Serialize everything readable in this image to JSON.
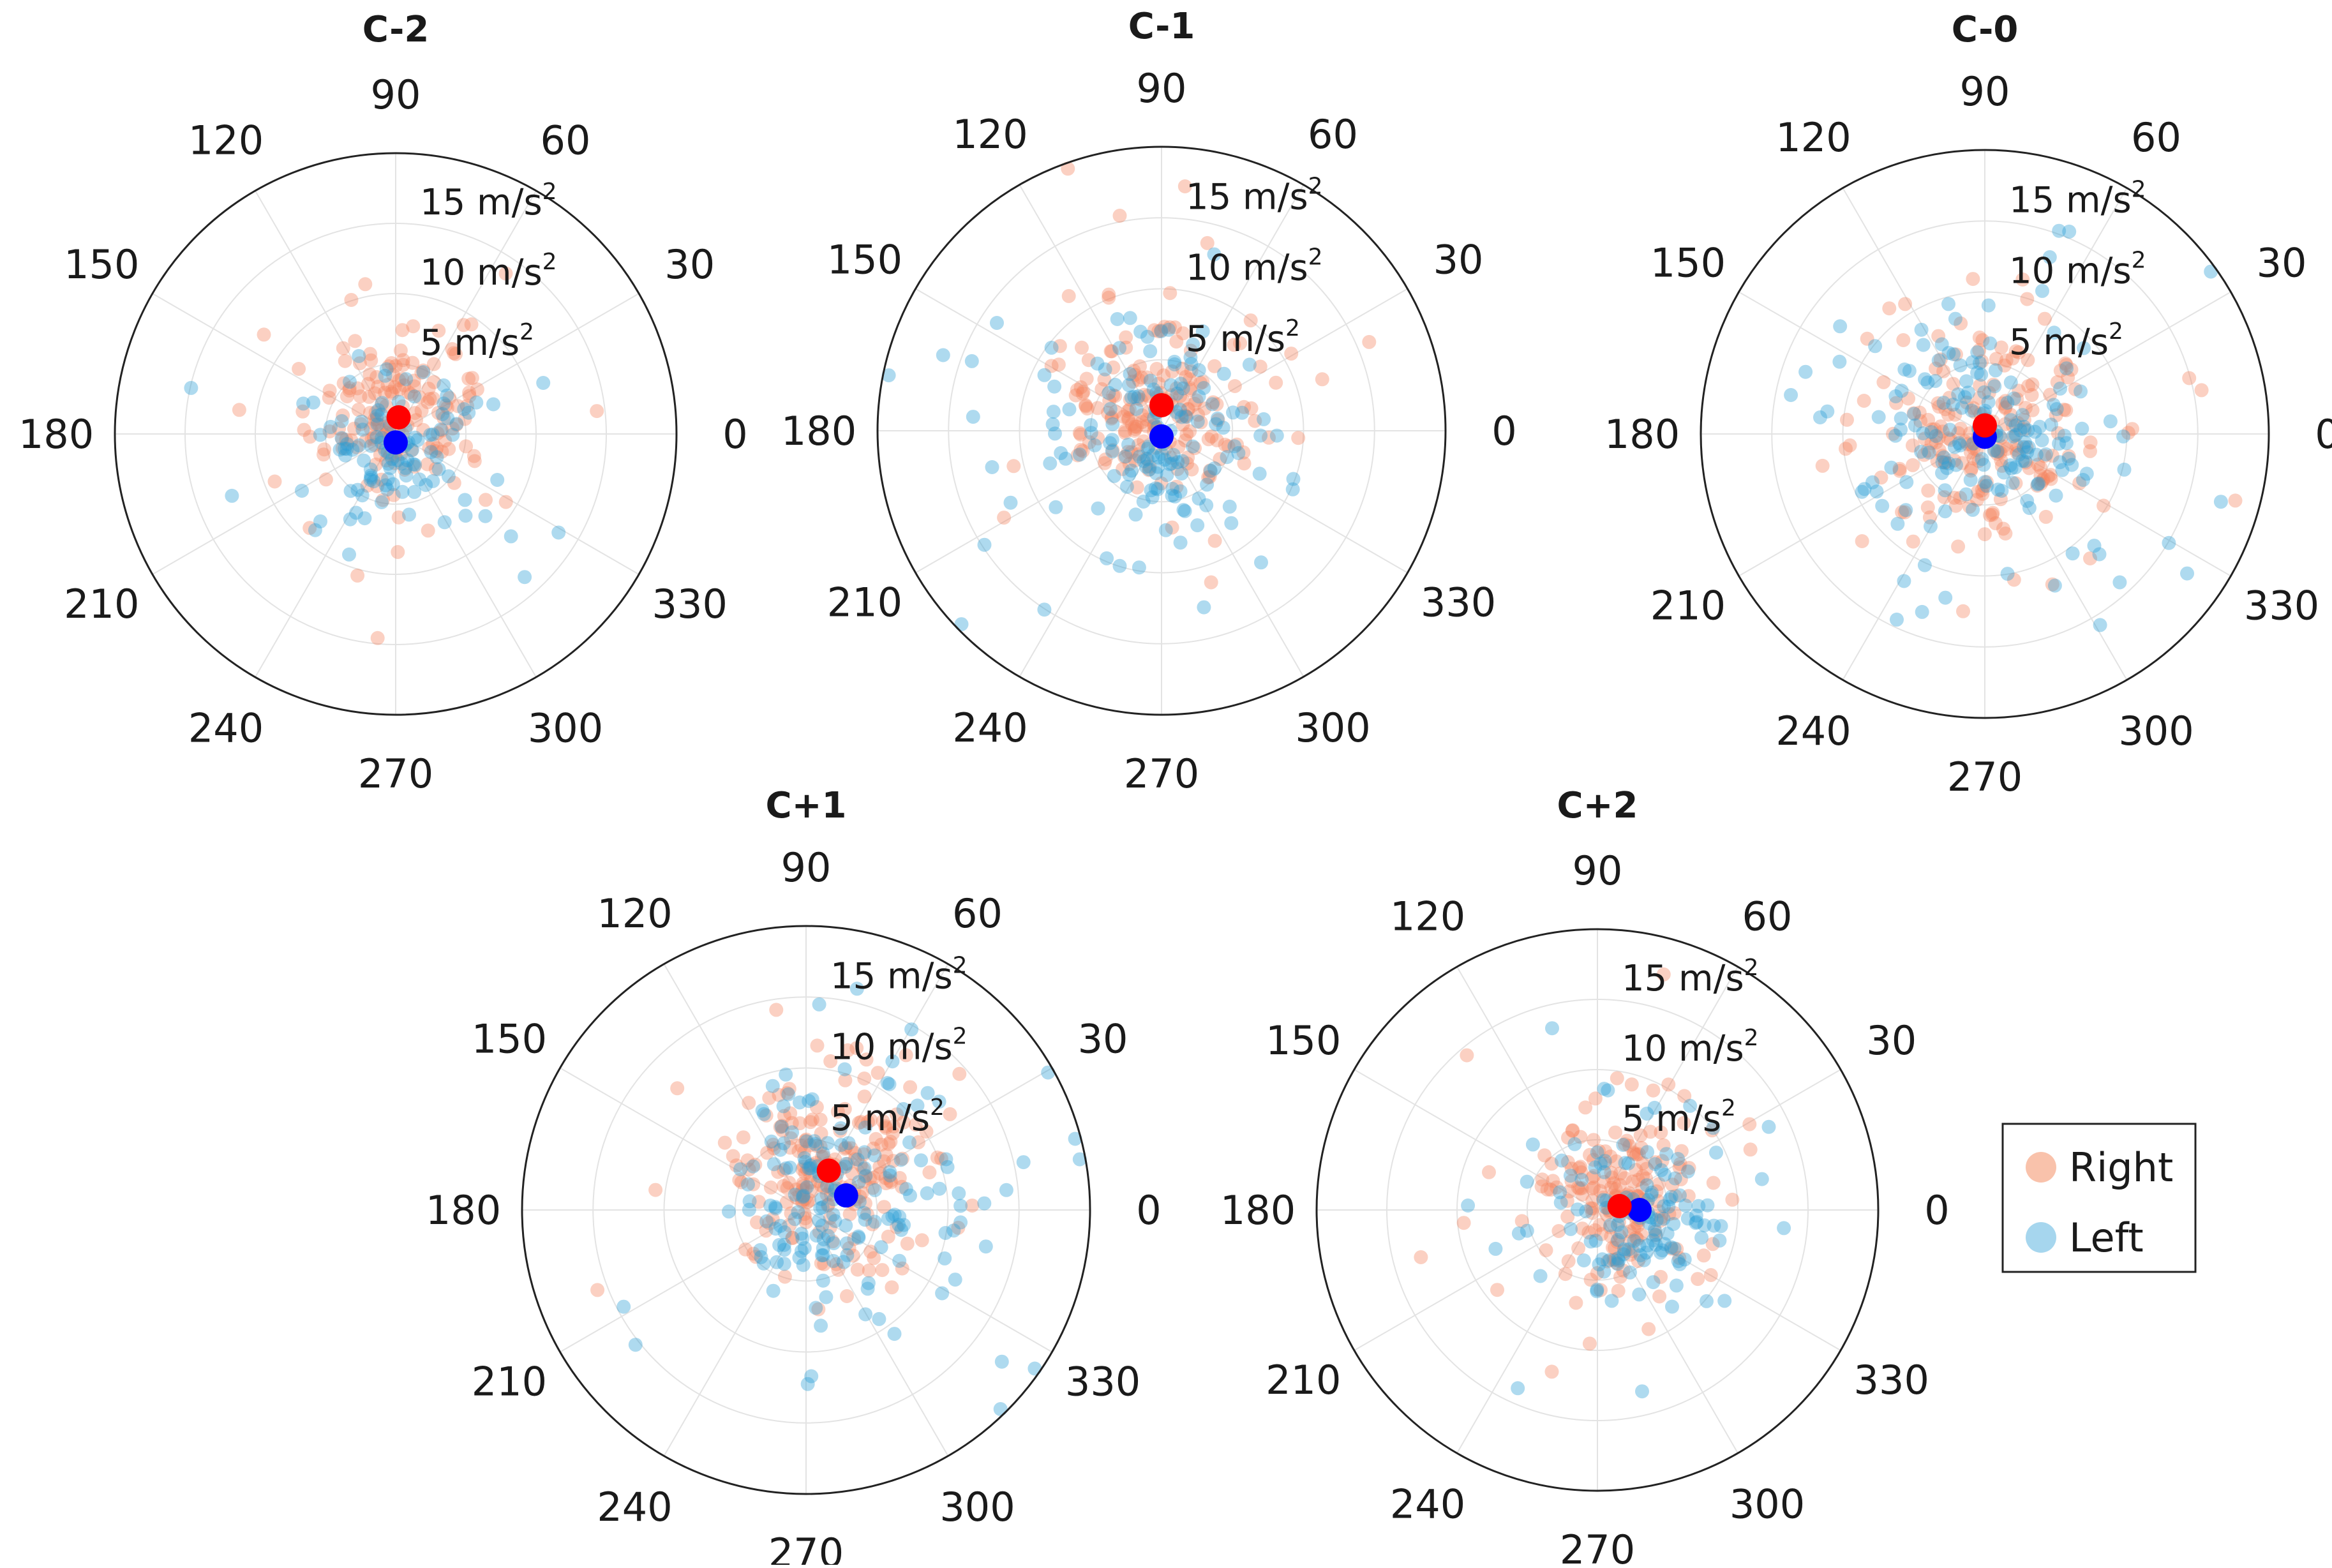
{
  "chart_data": [
    {
      "type": "scatter",
      "polar": true,
      "title": "C-2",
      "angle_ticks": [
        "90",
        "60",
        "30",
        "0",
        "330",
        "300",
        "270",
        "240",
        "210",
        "180",
        "150",
        "120"
      ],
      "radius_ticks": [
        "5 m/s",
        "10 m/s",
        "15 m/s"
      ],
      "radius_unit_sup": "2",
      "rlim": [
        0,
        20
      ],
      "grid": true,
      "series": [
        {
          "name": "Right",
          "color": "#f4845f",
          "mean": {
            "angle": 80,
            "r": 1.2
          },
          "spread": 3.2,
          "n": 170,
          "seed": 11
        },
        {
          "name": "Left",
          "color": "#2a9fd6",
          "mean": {
            "angle": 270,
            "r": 0.6
          },
          "spread": 3.6,
          "n": 110,
          "seed": 12
        }
      ]
    },
    {
      "type": "scatter",
      "polar": true,
      "title": "C-1",
      "angle_ticks": [
        "90",
        "60",
        "30",
        "0",
        "330",
        "300",
        "270",
        "240",
        "210",
        "180",
        "150",
        "120"
      ],
      "radius_ticks": [
        "5 m/s",
        "10 m/s",
        "15 m/s"
      ],
      "radius_unit_sup": "2",
      "rlim": [
        0,
        20
      ],
      "grid": true,
      "series": [
        {
          "name": "Right",
          "color": "#f4845f",
          "mean": {
            "angle": 90,
            "r": 1.8
          },
          "spread": 4.2,
          "n": 190,
          "seed": 21
        },
        {
          "name": "Left",
          "color": "#2a9fd6",
          "mean": {
            "angle": 270,
            "r": 0.4
          },
          "spread": 4.8,
          "n": 150,
          "seed": 22
        }
      ]
    },
    {
      "type": "scatter",
      "polar": true,
      "title": "C-0",
      "angle_ticks": [
        "90",
        "60",
        "30",
        "0",
        "330",
        "300",
        "270",
        "240",
        "210",
        "180",
        "150",
        "120"
      ],
      "radius_ticks": [
        "5 m/s",
        "10 m/s",
        "15 m/s"
      ],
      "radius_unit_sup": "2",
      "rlim": [
        0,
        20
      ],
      "grid": true,
      "series": [
        {
          "name": "Right",
          "color": "#f4845f",
          "mean": {
            "angle": 90,
            "r": 0.6
          },
          "spread": 4.8,
          "n": 200,
          "seed": 31
        },
        {
          "name": "Left",
          "color": "#2a9fd6",
          "mean": {
            "angle": 270,
            "r": 0.2
          },
          "spread": 5.2,
          "n": 170,
          "seed": 32
        }
      ]
    },
    {
      "type": "scatter",
      "polar": true,
      "title": "C+1",
      "angle_ticks": [
        "90",
        "60",
        "30",
        "0",
        "330",
        "300",
        "270",
        "240",
        "210",
        "180",
        "150",
        "120"
      ],
      "radius_ticks": [
        "5 m/s",
        "10 m/s",
        "15 m/s"
      ],
      "radius_unit_sup": "2",
      "rlim": [
        0,
        20
      ],
      "grid": true,
      "series": [
        {
          "name": "Right",
          "color": "#f4845f",
          "mean": {
            "angle": 60,
            "r": 3.2
          },
          "spread": 4.6,
          "n": 210,
          "seed": 41
        },
        {
          "name": "Left",
          "color": "#2a9fd6",
          "mean": {
            "angle": 20,
            "r": 3.0
          },
          "spread": 5.4,
          "n": 170,
          "seed": 42
        }
      ]
    },
    {
      "type": "scatter",
      "polar": true,
      "title": "C+2",
      "angle_ticks": [
        "90",
        "60",
        "30",
        "0",
        "330",
        "300",
        "270",
        "240",
        "210",
        "180",
        "150",
        "120"
      ],
      "radius_ticks": [
        "5 m/s",
        "10 m/s",
        "15 m/s"
      ],
      "radius_unit_sup": "2",
      "rlim": [
        0,
        20
      ],
      "grid": true,
      "series": [
        {
          "name": "Right",
          "color": "#f4845f",
          "mean": {
            "angle": 10,
            "r": 1.6
          },
          "spread": 3.6,
          "n": 190,
          "seed": 51
        },
        {
          "name": "Left",
          "color": "#2a9fd6",
          "mean": {
            "angle": 0,
            "r": 3.0
          },
          "spread": 3.8,
          "n": 130,
          "seed": 52
        }
      ]
    }
  ],
  "legend": {
    "placement": "right",
    "items": [
      {
        "label": "Right",
        "color": "#f9c2ab"
      },
      {
        "label": "Left",
        "color": "#a6d6ee"
      }
    ]
  },
  "mean_marker_colors": {
    "Right": "#ff0000",
    "Left": "#0000ff"
  }
}
